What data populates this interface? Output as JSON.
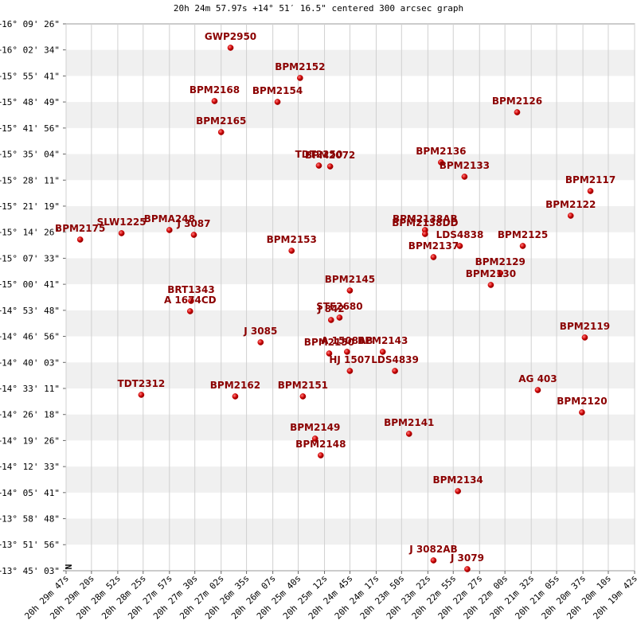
{
  "chart_data": {
    "type": "scatter",
    "title": "20h 24m 57.97s +14° 51′ 16.5\" centered 300 arcsec graph",
    "north_label": "N",
    "color": "#cc0000",
    "label_color": "#8b0000",
    "grid": true,
    "xlim": [
      73787,
      73182
    ],
    "ylim": [
      49503,
      58166
    ],
    "xticks": [
      {
        "value": 73787,
        "label": "20h 29m 47s"
      },
      {
        "value": 73760,
        "label": "20h 29m 20s"
      },
      {
        "value": 73732,
        "label": "20h 28m 52s"
      },
      {
        "value": 73705,
        "label": "20h 28m 25s"
      },
      {
        "value": 73677,
        "label": "20h 27m 57s"
      },
      {
        "value": 73650,
        "label": "20h 27m 30s"
      },
      {
        "value": 73622,
        "label": "20h 27m 02s"
      },
      {
        "value": 73595,
        "label": "20h 26m 35s"
      },
      {
        "value": 73567,
        "label": "20h 26m 07s"
      },
      {
        "value": 73540,
        "label": "20h 25m 40s"
      },
      {
        "value": 73512,
        "label": "20h 25m 12s"
      },
      {
        "value": 73485,
        "label": "20h 24m 45s"
      },
      {
        "value": 73457,
        "label": "20h 24m 17s"
      },
      {
        "value": 73430,
        "label": "20h 23m 50s"
      },
      {
        "value": 73402,
        "label": "20h 23m 22s"
      },
      {
        "value": 73375,
        "label": "20h 22m 55s"
      },
      {
        "value": 73347,
        "label": "20h 22m 27s"
      },
      {
        "value": 73320,
        "label": "20h 22m 00s"
      },
      {
        "value": 73292,
        "label": "20h 21m 32s"
      },
      {
        "value": 73265,
        "label": "20h 21m 05s"
      },
      {
        "value": 73237,
        "label": "20h 20m 37s"
      },
      {
        "value": 73210,
        "label": "20h 20m 10s"
      },
      {
        "value": 73182,
        "label": "20h 19m 42s"
      }
    ],
    "yticks": [
      {
        "value": 58166,
        "label": "+16° 09' 26\""
      },
      {
        "value": 57754,
        "label": "+16° 02' 34\""
      },
      {
        "value": 57341,
        "label": "+15° 55' 41\""
      },
      {
        "value": 56929,
        "label": "+15° 48' 49\""
      },
      {
        "value": 56516,
        "label": "+15° 41' 56\""
      },
      {
        "value": 56104,
        "label": "+15° 35' 04\""
      },
      {
        "value": 55691,
        "label": "+15° 28' 11\""
      },
      {
        "value": 55279,
        "label": "+15° 21' 19\""
      },
      {
        "value": 54866,
        "label": "+15° 14' 26\""
      },
      {
        "value": 54453,
        "label": "+15° 07' 33\""
      },
      {
        "value": 54041,
        "label": "+15° 00' 41\""
      },
      {
        "value": 53628,
        "label": "+14° 53' 48\""
      },
      {
        "value": 53216,
        "label": "+14° 46' 56\""
      },
      {
        "value": 52803,
        "label": "+14° 40' 03\""
      },
      {
        "value": 52391,
        "label": "+14° 33' 11\""
      },
      {
        "value": 51978,
        "label": "+14° 26' 18\""
      },
      {
        "value": 51566,
        "label": "+14° 19' 26\""
      },
      {
        "value": 51153,
        "label": "+14° 12' 33\""
      },
      {
        "value": 50741,
        "label": "+14° 05' 41\""
      },
      {
        "value": 50328,
        "label": "+13° 58' 48\""
      },
      {
        "value": 49916,
        "label": "+13° 51' 56\""
      },
      {
        "value": 49503,
        "label": "+13° 45' 03\""
      }
    ],
    "point_labels": [
      "GWP2950",
      "BPM2152",
      "BPM2168",
      "BPM2154",
      "BPM2126",
      "BPM2165",
      "TDT2250",
      "BPM2072",
      "BPM2136",
      "BPM2133",
      "BPM2117",
      "BPM2122",
      "BPM2175",
      "SLW1225",
      "BPMA248",
      "J 3087",
      "BPM2138AB",
      "BPM2138DD",
      "LDS4838",
      "BPM2137",
      "BPM2125",
      "BPM2153",
      "BPM2129",
      "BPM2130",
      "BPM2145",
      "BRT1343",
      "A 1674CD",
      "J 842",
      "STF2680",
      "J 3085",
      "BPM2150",
      "A 1508AB",
      "BPM2143",
      "HJ 1507",
      "LDS4839",
      "BPM2119",
      "TDT2312",
      "BPM2162",
      "BPM2151",
      "AG 403",
      "BPM2120",
      "BPM2141",
      "BPM2149",
      "BPM2148",
      "BPM2134",
      "J 3082AB",
      "J 3079"
    ],
    "x": [
      73612,
      73538,
      73629,
      73562,
      73307,
      73622,
      73518,
      73506,
      73388,
      73363,
      73229,
      73250,
      73772,
      73728,
      73677,
      73651,
      73405,
      73405,
      73368,
      73396,
      73301,
      73547,
      73325,
      73335,
      73485,
      73654,
      73655,
      73505,
      73496,
      73580,
      73507,
      73488,
      73450,
      73485,
      73437,
      73235,
      73707,
      73607,
      73535,
      73285,
      73238,
      73422,
      73522,
      73516,
      73370,
      73396,
      73360
    ],
    "values": [
      57788,
      57309,
      56943,
      56930,
      56766,
      56451,
      55921,
      55908,
      55972,
      55745,
      55518,
      55127,
      54749,
      54850,
      54900,
      54824,
      54900,
      54837,
      54648,
      54471,
      54648,
      54572,
      54219,
      54030,
      53942,
      53778,
      53614,
      53475,
      53513,
      53122,
      52945,
      52971,
      52971,
      52668,
      52668,
      53198,
      52290,
      52265,
      52265,
      52365,
      52012,
      51672,
      51596,
      51331,
      50764,
      49667,
      49528
    ]
  }
}
